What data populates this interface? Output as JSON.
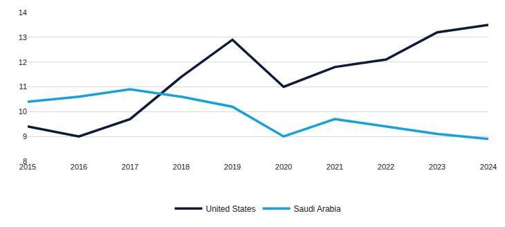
{
  "chart_data": {
    "type": "line",
    "categories": [
      "2015",
      "2016",
      "2017",
      "2018",
      "2019",
      "2020",
      "2021",
      "2022",
      "2023",
      "2024"
    ],
    "series": [
      {
        "name": "United States",
        "color": "#0e1a3a",
        "values": [
          9.4,
          9.0,
          9.7,
          11.4,
          12.9,
          11.0,
          11.8,
          12.1,
          13.2,
          13.5
        ]
      },
      {
        "name": "Saudi Arabia",
        "color": "#12a2e0",
        "values": [
          10.4,
          10.6,
          10.9,
          10.6,
          10.2,
          9.0,
          9.7,
          9.4,
          9.1,
          8.9
        ]
      }
    ],
    "ylim": [
      8,
      14
    ],
    "yticks": [
      8,
      9,
      10,
      11,
      12,
      13,
      14
    ],
    "grid": true,
    "legend": "bottom"
  }
}
